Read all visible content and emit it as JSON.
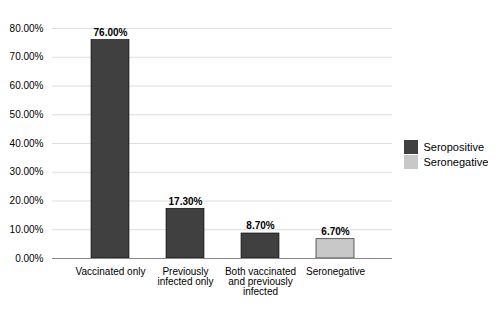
{
  "chart_data": {
    "type": "bar",
    "categories": [
      "Vaccinated only",
      "Previously\ninfected only",
      "Both vaccinated\nand previously\ninfected",
      "Seronegative"
    ],
    "series": [
      {
        "name": "Seropositive",
        "color": "#404040",
        "values": [
          76.0,
          17.3,
          8.7,
          null
        ],
        "value_labels": [
          "76.00%",
          "17.30%",
          "8.70%",
          null
        ]
      },
      {
        "name": "Seronegative",
        "color": "#c8c8c8",
        "values": [
          null,
          null,
          null,
          6.7
        ],
        "value_labels": [
          null,
          null,
          null,
          "6.70%"
        ]
      }
    ],
    "ylim": [
      0,
      80
    ],
    "yticks": [
      {
        "value": 0,
        "label": "0.00%"
      },
      {
        "value": 10,
        "label": "10.00%"
      },
      {
        "value": 20,
        "label": "20.00%"
      },
      {
        "value": 30,
        "label": "30.00%"
      },
      {
        "value": 40,
        "label": "40.00%"
      },
      {
        "value": 50,
        "label": "50.00%"
      },
      {
        "value": 60,
        "label": "60.00%"
      },
      {
        "value": 70,
        "label": "70.00%"
      },
      {
        "value": 80,
        "label": "80.00%"
      }
    ],
    "grid": true,
    "legend": "right",
    "data_labels": true
  }
}
